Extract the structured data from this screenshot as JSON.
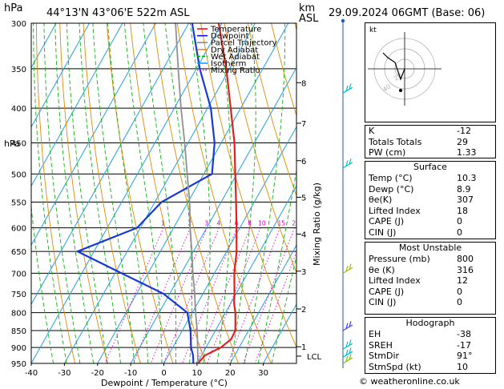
{
  "header": {
    "pressure_unit": "hPa",
    "location": "44°13'N  43°06'E  522m  ASL",
    "km_label": "km",
    "asl_label": "ASL",
    "datetime": "29.09.2024  06GMT  (Base: 06)"
  },
  "chart_data": {
    "type": "line",
    "title": "",
    "xlabel": "Dewpoint / Temperature (°C)",
    "ylabel": "hPa",
    "mixing_ratio_label": "Mixing Ratio (g/kg)",
    "xlim": [
      -40,
      40
    ],
    "ylim": [
      950,
      300
    ],
    "x_ticks": [
      -40,
      -30,
      -20,
      -10,
      0,
      10,
      20,
      30
    ],
    "pressure_ticks": [
      300,
      350,
      400,
      450,
      500,
      550,
      600,
      650,
      700,
      750,
      800,
      850,
      900,
      950
    ],
    "km_ticks": [
      {
        "label": "8",
        "p": 367
      },
      {
        "label": "7",
        "p": 421
      },
      {
        "label": "6",
        "p": 478
      },
      {
        "label": "5",
        "p": 541
      },
      {
        "label": "4",
        "p": 613
      },
      {
        "label": "3",
        "p": 695
      },
      {
        "label": "2",
        "p": 790
      },
      {
        "label": "1",
        "p": 898
      },
      {
        "label": "LCL",
        "p": 927
      }
    ],
    "mixing_ratio_values": [
      "1",
      "2",
      "3",
      "4",
      "6",
      "8",
      "10",
      "15",
      "20",
      "25"
    ],
    "legend": [
      "Temperature",
      "Dewpoint",
      "Parcel Trajectory",
      "Dry Adiabat",
      "Wet Adiabat",
      "Isotherm",
      "Mixing Ratio"
    ],
    "legend_colors": [
      "#ff0000",
      "#0000ff",
      "#808080",
      "#ff8000",
      "#00b000",
      "#00a0ff",
      "#ff00ff"
    ],
    "series": [
      {
        "name": "Temperature",
        "color": "#e02020",
        "points": [
          [
            950,
            10.3
          ],
          [
            925,
            11.0
          ],
          [
            900,
            14.5
          ],
          [
            875,
            16.2
          ],
          [
            850,
            16.0
          ],
          [
            800,
            13.0
          ],
          [
            775,
            11.0
          ],
          [
            750,
            9.5
          ],
          [
            700,
            6.0
          ],
          [
            650,
            3.0
          ],
          [
            600,
            -1.0
          ],
          [
            550,
            -5.5
          ],
          [
            500,
            -10.5
          ],
          [
            450,
            -16.0
          ],
          [
            400,
            -23.0
          ],
          [
            350,
            -31.0
          ],
          [
            300,
            -41.0
          ]
        ]
      },
      {
        "name": "Dewpoint",
        "color": "#1838d8",
        "points": [
          [
            950,
            8.9
          ],
          [
            925,
            7.5
          ],
          [
            900,
            5.5
          ],
          [
            850,
            2.5
          ],
          [
            800,
            -1.5
          ],
          [
            750,
            -12.0
          ],
          [
            700,
            -28.0
          ],
          [
            650,
            -45.0
          ],
          [
            600,
            -31.0
          ],
          [
            550,
            -28.0
          ],
          [
            500,
            -17.5
          ],
          [
            450,
            -22.0
          ],
          [
            400,
            -29.0
          ],
          [
            350,
            -39.0
          ],
          [
            300,
            -49.0
          ]
        ]
      },
      {
        "name": "Parcel Trajectory",
        "color": "#909090",
        "points": [
          [
            950,
            10.3
          ],
          [
            927,
            9.0
          ],
          [
            900,
            7.5
          ],
          [
            850,
            4.5
          ],
          [
            800,
            1.0
          ],
          [
            750,
            -2.5
          ],
          [
            700,
            -6.5
          ],
          [
            650,
            -10.5
          ],
          [
            600,
            -15.0
          ],
          [
            550,
            -19.5
          ],
          [
            500,
            -25.0
          ],
          [
            450,
            -31.0
          ],
          [
            400,
            -38.0
          ],
          [
            350,
            -45.5
          ],
          [
            300,
            -54.0
          ]
        ]
      }
    ],
    "wind_barbs": [
      {
        "p": 380,
        "color": "#00c0c0"
      },
      {
        "p": 490,
        "color": "#00c0c0"
      },
      {
        "p": 700,
        "color": "#a0c000"
      },
      {
        "p": 850,
        "color": "#4040ff"
      },
      {
        "p": 905,
        "color": "#00c0c0"
      },
      {
        "p": 930,
        "color": "#00c0c0"
      },
      {
        "p": 950,
        "color": "#80c000"
      }
    ]
  },
  "hodograph": {
    "label": "kt",
    "ring_labels": [
      "20",
      "40"
    ]
  },
  "indices": [
    {
      "label": "K",
      "value": "-12"
    },
    {
      "label": "Totals Totals",
      "value": "29"
    },
    {
      "label": "PW (cm)",
      "value": "1.33"
    }
  ],
  "surface": {
    "title": "Surface",
    "rows": [
      {
        "label": "Temp (°C)",
        "value": "10.3"
      },
      {
        "label": "Dewp (°C)",
        "value": "8.9"
      },
      {
        "label": "θe(K)",
        "value": "307"
      },
      {
        "label": "Lifted Index",
        "value": "18"
      },
      {
        "label": "CAPE (J)",
        "value": "0"
      },
      {
        "label": "CIN (J)",
        "value": "0"
      }
    ]
  },
  "most_unstable": {
    "title": "Most Unstable",
    "rows": [
      {
        "label": "Pressure (mb)",
        "value": "800"
      },
      {
        "label": "θe (K)",
        "value": "316"
      },
      {
        "label": "Lifted Index",
        "value": "12"
      },
      {
        "label": "CAPE (J)",
        "value": "0"
      },
      {
        "label": "CIN (J)",
        "value": "0"
      }
    ]
  },
  "hodograph_table": {
    "title": "Hodograph",
    "rows": [
      {
        "label": "EH",
        "value": "-38"
      },
      {
        "label": "SREH",
        "value": "-17"
      },
      {
        "label": "StmDir",
        "value": "91°"
      },
      {
        "label": "StmSpd (kt)",
        "value": "10"
      }
    ]
  },
  "footer": {
    "copyright": "© weatheronline.co.uk"
  }
}
